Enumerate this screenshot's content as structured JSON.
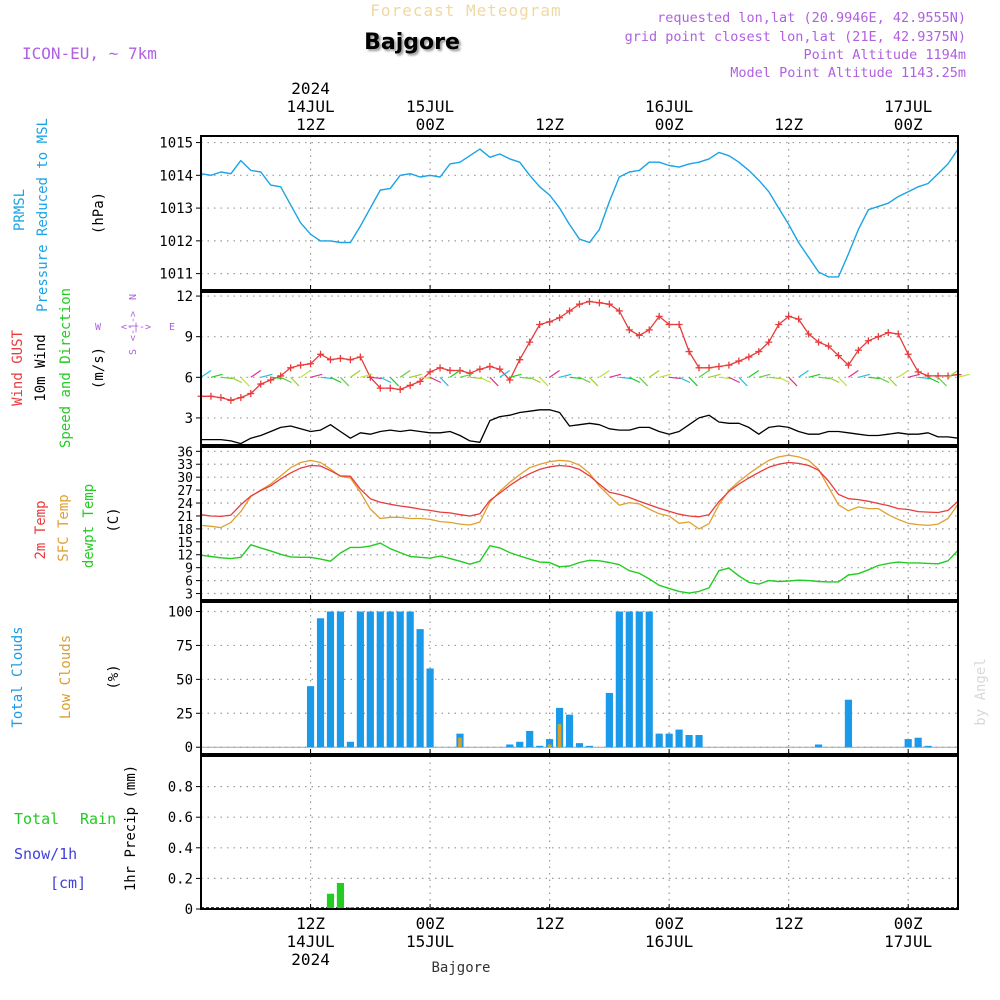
{
  "header": {
    "title": "Forecast Meteogram",
    "location": "Bajgore",
    "model": "ICON-EU, ~ 7km",
    "requested": "requested lon,lat (20.9946E, 42.9555N)",
    "grid_point": "grid point closest lon,lat (21E, 42.9375N)",
    "point_altitude": "Point Altitude 1194m",
    "model_altitude": "Model Point Altitude 1143.25m",
    "watermark": "by Angel",
    "footer_location": "Bajgore"
  },
  "time_axis": {
    "top_labels": [
      {
        "lines": [
          "2024",
          "14JUL",
          "12Z"
        ],
        "hour": 12
      },
      {
        "lines": [
          "15JUL",
          "00Z"
        ],
        "hour": 24
      },
      {
        "lines": [
          "12Z"
        ],
        "hour": 36
      },
      {
        "lines": [
          "16JUL",
          "00Z"
        ],
        "hour": 48
      },
      {
        "lines": [
          "12Z"
        ],
        "hour": 60
      },
      {
        "lines": [
          "17JUL",
          "00Z"
        ],
        "hour": 72
      }
    ],
    "bottom_labels": [
      {
        "lines": [
          "12Z",
          "14JUL",
          "2024"
        ],
        "hour": 12
      },
      {
        "lines": [
          "00Z",
          "15JUL"
        ],
        "hour": 24
      },
      {
        "lines": [
          "12Z"
        ],
        "hour": 36
      },
      {
        "lines": [
          "00Z",
          "16JUL"
        ],
        "hour": 48
      },
      {
        "lines": [
          "12Z"
        ],
        "hour": 60
      },
      {
        "lines": [
          "00Z",
          "17JUL"
        ],
        "hour": 72
      }
    ],
    "start_hour": 1,
    "end_hour": 77
  },
  "colors": {
    "pressure": "#1aa3e6",
    "gust": "#e83c3c",
    "wind": "#000000",
    "temp2m": "#e83c3c",
    "sfc_temp": "#e0a030",
    "dewpt": "#22cc22",
    "total_clouds": "#1a9ae8",
    "low_clouds": "#d9a030",
    "rain": "#22cc22",
    "snow": "#4040e0",
    "purple": "#b060e0"
  },
  "panel_labels": {
    "pressure": {
      "line1": "PRMSL",
      "line2": "Pressure Reduced to MSL",
      "unit": "(hPa)"
    },
    "wind": {
      "gust": "Wind GUST",
      "wind": "10m Wind",
      "dir": "Speed and Direction",
      "unit": "(m/s)",
      "compass_n": "N",
      "compass_s": "S",
      "compass_w": "W",
      "compass_e": "E",
      "compass_mid": "<-|->"
    },
    "temp": {
      "t2m": "2m Temp",
      "sfc": "SFC Temp",
      "dew": "dewpt Temp",
      "unit": "(C)"
    },
    "clouds": {
      "total": "Total Clouds",
      "low": "Low Clouds",
      "unit": "(%)"
    },
    "precip": {
      "rain_a": "Total",
      "rain_b": "Rain",
      "snow": "Snow/1h",
      "snow_unit": "[cm]",
      "unit": "1hr Precip (mm)"
    }
  },
  "chart_data": [
    {
      "type": "line",
      "title": "PRMSL Pressure Reduced to MSL",
      "ylabel": "(hPa)",
      "ylim": [
        1010.5,
        1015.2
      ],
      "yticks": [
        1011,
        1012,
        1013,
        1014,
        1015
      ],
      "x": [
        1,
        2,
        3,
        4,
        5,
        6,
        7,
        8,
        9,
        10,
        11,
        12,
        13,
        14,
        15,
        16,
        17,
        18,
        19,
        20,
        21,
        22,
        23,
        24,
        25,
        26,
        27,
        28,
        29,
        30,
        31,
        32,
        33,
        34,
        35,
        36,
        37,
        38,
        39,
        40,
        41,
        42,
        43,
        44,
        45,
        46,
        47,
        48,
        49,
        50,
        51,
        52,
        53,
        54,
        55,
        56,
        57,
        58,
        59,
        60,
        61,
        62,
        63,
        64,
        65,
        66,
        67,
        68,
        69,
        70,
        71,
        72,
        73,
        74,
        75,
        76,
        77
      ],
      "series": [
        {
          "name": "PRMSL",
          "values": [
            1014.05,
            1014.0,
            1014.1,
            1014.05,
            1014.45,
            1014.15,
            1014.1,
            1013.7,
            1013.65,
            1013.1,
            1012.55,
            1012.2,
            1012.0,
            1012.0,
            1011.95,
            1011.95,
            1012.45,
            1013.0,
            1013.55,
            1013.6,
            1014.0,
            1014.05,
            1013.95,
            1014.0,
            1013.95,
            1014.35,
            1014.4,
            1014.6,
            1014.8,
            1014.55,
            1014.65,
            1014.5,
            1014.4,
            1014.0,
            1013.65,
            1013.4,
            1013.0,
            1012.5,
            1012.05,
            1011.95,
            1012.35,
            1013.2,
            1013.95,
            1014.1,
            1014.15,
            1014.4,
            1014.4,
            1014.3,
            1014.25,
            1014.35,
            1014.4,
            1014.5,
            1014.7,
            1014.6,
            1014.4,
            1014.15,
            1013.85,
            1013.5,
            1013.0,
            1012.5,
            1011.95,
            1011.5,
            1011.05,
            1010.9,
            1010.9,
            1011.6,
            1012.35,
            1012.95,
            1013.05,
            1013.15,
            1013.35,
            1013.5,
            1013.65,
            1013.75,
            1014.05,
            1014.35,
            1014.8
          ]
        }
      ]
    },
    {
      "type": "line",
      "title": "Wind GUST / 10m Wind Speed and Direction",
      "ylabel": "(m/s)",
      "ylim": [
        1,
        12.3
      ],
      "yticks": [
        3,
        6,
        9,
        12
      ],
      "x": [
        1,
        2,
        3,
        4,
        5,
        6,
        7,
        8,
        9,
        10,
        11,
        12,
        13,
        14,
        15,
        16,
        17,
        18,
        19,
        20,
        21,
        22,
        23,
        24,
        25,
        26,
        27,
        28,
        29,
        30,
        31,
        32,
        33,
        34,
        35,
        36,
        37,
        38,
        39,
        40,
        41,
        42,
        43,
        44,
        45,
        46,
        47,
        48,
        49,
        50,
        51,
        52,
        53,
        54,
        55,
        56,
        57,
        58,
        59,
        60,
        61,
        62,
        63,
        64,
        65,
        66,
        67,
        68,
        69,
        70,
        71,
        72,
        73,
        74,
        75,
        76,
        77
      ],
      "series": [
        {
          "name": "Wind GUST",
          "values": [
            4.6,
            4.6,
            4.5,
            4.3,
            4.5,
            4.8,
            5.5,
            5.8,
            6.1,
            6.7,
            6.9,
            7.0,
            7.7,
            7.3,
            7.4,
            7.3,
            7.5,
            6.0,
            5.2,
            5.2,
            5.1,
            5.4,
            5.7,
            6.4,
            6.7,
            6.5,
            6.5,
            6.3,
            6.6,
            6.8,
            6.6,
            5.8,
            7.3,
            8.6,
            9.9,
            10.1,
            10.4,
            10.9,
            11.4,
            11.6,
            11.5,
            11.4,
            10.9,
            9.5,
            9.1,
            9.5,
            10.5,
            9.9,
            9.9,
            7.9,
            6.7,
            6.7,
            6.8,
            6.9,
            7.2,
            7.5,
            7.9,
            8.6,
            9.9,
            10.5,
            10.3,
            9.2,
            8.6,
            8.3,
            7.6,
            6.9,
            8.0,
            8.7,
            9.0,
            9.3,
            9.2,
            7.7,
            6.4,
            6.1,
            6.1,
            6.1,
            6.2
          ]
        },
        {
          "name": "10m Wind",
          "values": [
            1.4,
            1.4,
            1.4,
            1.3,
            1.1,
            1.5,
            1.7,
            2.0,
            2.3,
            2.4,
            2.2,
            2.0,
            2.1,
            2.5,
            2.0,
            1.5,
            1.9,
            1.8,
            2.0,
            2.1,
            2.0,
            2.1,
            2.0,
            1.9,
            1.9,
            2.0,
            1.7,
            1.3,
            1.2,
            2.8,
            3.1,
            3.2,
            3.4,
            3.5,
            3.6,
            3.6,
            3.4,
            2.4,
            2.5,
            2.6,
            2.5,
            2.2,
            2.1,
            2.1,
            2.3,
            2.3,
            2.0,
            1.8,
            2.0,
            2.5,
            3.0,
            3.2,
            2.7,
            2.6,
            2.6,
            2.3,
            1.8,
            2.3,
            2.4,
            2.3,
            2.0,
            1.8,
            1.8,
            2.0,
            2.0,
            1.9,
            1.8,
            1.7,
            1.7,
            1.8,
            1.9,
            1.8,
            1.8,
            1.9,
            1.6,
            1.6,
            1.5
          ]
        }
      ]
    },
    {
      "type": "line",
      "title": "2m Temp / SFC Temp / dewpt Temp",
      "ylabel": "(C)",
      "ylim": [
        1.5,
        37
      ],
      "yticks": [
        3,
        6,
        9,
        12,
        15,
        18,
        21,
        24,
        27,
        30,
        33,
        36
      ],
      "x": [
        1,
        2,
        3,
        4,
        5,
        6,
        7,
        8,
        9,
        10,
        11,
        12,
        13,
        14,
        15,
        16,
        17,
        18,
        19,
        20,
        21,
        22,
        23,
        24,
        25,
        26,
        27,
        28,
        29,
        30,
        31,
        32,
        33,
        34,
        35,
        36,
        37,
        38,
        39,
        40,
        41,
        42,
        43,
        44,
        45,
        46,
        47,
        48,
        49,
        50,
        51,
        52,
        53,
        54,
        55,
        56,
        57,
        58,
        59,
        60,
        61,
        62,
        63,
        64,
        65,
        66,
        67,
        68,
        69,
        70,
        71,
        72,
        73,
        74,
        75,
        76,
        77
      ],
      "series": [
        {
          "name": "2m Temp",
          "values": [
            21.3,
            21.0,
            20.9,
            21.2,
            23.6,
            25.6,
            26.9,
            28.0,
            29.6,
            31.0,
            32.1,
            32.7,
            32.6,
            31.5,
            30.3,
            30.2,
            27.2,
            25.0,
            24.2,
            23.7,
            23.3,
            23.0,
            22.6,
            22.3,
            21.9,
            21.7,
            21.3,
            21.0,
            21.5,
            24.6,
            26.3,
            28.1,
            29.6,
            30.8,
            31.8,
            32.4,
            32.7,
            32.5,
            31.8,
            30.3,
            28.4,
            26.5,
            26.0,
            25.3,
            24.4,
            23.6,
            22.8,
            22.1,
            21.4,
            21.0,
            20.8,
            21.3,
            24.3,
            26.7,
            28.4,
            29.8,
            31.1,
            32.3,
            33.0,
            33.4,
            33.2,
            32.7,
            31.6,
            29.1,
            26.0,
            25.0,
            24.8,
            24.4,
            23.9,
            23.4,
            22.7,
            22.5,
            22.0,
            21.9,
            21.8,
            22.3,
            24.4
          ]
        },
        {
          "name": "SFC Temp",
          "values": [
            18.8,
            18.6,
            18.3,
            19.5,
            22.0,
            25.5,
            27.0,
            28.4,
            30.3,
            32.2,
            33.4,
            33.9,
            33.4,
            31.9,
            30.2,
            29.8,
            26.5,
            22.6,
            20.4,
            20.7,
            20.7,
            20.4,
            20.4,
            20.2,
            19.7,
            19.5,
            19.1,
            18.9,
            19.6,
            24.2,
            26.7,
            28.8,
            30.6,
            32.2,
            33.0,
            33.6,
            33.9,
            33.7,
            32.8,
            30.9,
            27.9,
            25.6,
            23.5,
            24.1,
            23.8,
            22.6,
            21.5,
            21.0,
            19.3,
            19.6,
            18.0,
            19.2,
            23.6,
            26.9,
            29.0,
            30.8,
            32.4,
            33.9,
            34.7,
            35.1,
            34.7,
            33.9,
            31.8,
            27.7,
            23.6,
            22.2,
            23.1,
            22.7,
            22.7,
            21.3,
            20.2,
            19.3,
            19.0,
            18.8,
            19.1,
            20.4,
            23.7
          ]
        },
        {
          "name": "dewpt Temp",
          "values": [
            11.9,
            11.6,
            11.3,
            11.1,
            11.4,
            14.3,
            13.6,
            12.9,
            12.1,
            11.5,
            11.4,
            11.4,
            11.0,
            10.5,
            12.4,
            13.7,
            13.7,
            14.0,
            14.7,
            13.4,
            12.5,
            11.6,
            11.4,
            11.2,
            11.7,
            11.1,
            10.5,
            9.8,
            10.5,
            14.1,
            13.6,
            12.5,
            11.7,
            11.0,
            10.3,
            10.2,
            9.2,
            9.4,
            10.2,
            10.7,
            10.6,
            10.2,
            9.7,
            8.3,
            7.7,
            6.4,
            4.9,
            4.2,
            3.5,
            3.1,
            3.5,
            4.3,
            8.3,
            8.9,
            7.1,
            5.6,
            5.2,
            6.0,
            5.8,
            5.9,
            6.1,
            6.0,
            5.8,
            5.7,
            5.7,
            7.3,
            7.6,
            8.5,
            9.5,
            10.0,
            10.3,
            10.1,
            10.1,
            10.0,
            9.9,
            10.6,
            13.0
          ]
        }
      ]
    },
    {
      "type": "bar",
      "title": "Total Clouds / Low Clouds",
      "ylabel": "(%)",
      "ylim": [
        -5,
        107
      ],
      "yticks": [
        0,
        25,
        50,
        75,
        100
      ],
      "x": [
        1,
        2,
        3,
        4,
        5,
        6,
        7,
        8,
        9,
        10,
        11,
        12,
        13,
        14,
        15,
        16,
        17,
        18,
        19,
        20,
        21,
        22,
        23,
        24,
        25,
        26,
        27,
        28,
        29,
        30,
        31,
        32,
        33,
        34,
        35,
        36,
        37,
        38,
        39,
        40,
        41,
        42,
        43,
        44,
        45,
        46,
        47,
        48,
        49,
        50,
        51,
        52,
        53,
        54,
        55,
        56,
        57,
        58,
        59,
        60,
        61,
        62,
        63,
        64,
        65,
        66,
        67,
        68,
        69,
        70,
        71,
        72,
        73,
        74,
        75,
        76,
        77
      ],
      "series": [
        {
          "name": "Total Clouds",
          "values": [
            0,
            0,
            0,
            0,
            0,
            0,
            0,
            0,
            0,
            0,
            0,
            45,
            95,
            100,
            100,
            4,
            100,
            100,
            100,
            100,
            100,
            100,
            87,
            58,
            0,
            0,
            10,
            0,
            0,
            0,
            0,
            2,
            4,
            12,
            1,
            6,
            29,
            24,
            3,
            1,
            0,
            40,
            100,
            100,
            100,
            100,
            10,
            10,
            13,
            9,
            9,
            0,
            0,
            0,
            0,
            0,
            0,
            0,
            0,
            0,
            0,
            0,
            2,
            0,
            0,
            35,
            0,
            0,
            0,
            0,
            0,
            6,
            7,
            1,
            0,
            0,
            0
          ]
        },
        {
          "name": "Low Clouds",
          "values": [
            0,
            0,
            0,
            0,
            0,
            0,
            0,
            0,
            0,
            0,
            0,
            0,
            0,
            0,
            0,
            0,
            0,
            0,
            0,
            0,
            0,
            0,
            0,
            0,
            0,
            0,
            7,
            0,
            0,
            0,
            0,
            0,
            0,
            0,
            0,
            2,
            17,
            0,
            0,
            0,
            0,
            0,
            0,
            0,
            0,
            0,
            0,
            0,
            0,
            0,
            0,
            0,
            0,
            0,
            0,
            0,
            0,
            0,
            0,
            0,
            0,
            0,
            0,
            0,
            0,
            0,
            0,
            0,
            0,
            0,
            0,
            0,
            0,
            0,
            0,
            0,
            0
          ]
        }
      ]
    },
    {
      "type": "bar",
      "title": "Total Rain / Snow/1h",
      "ylabel": "1hr Precip (mm)",
      "ylim": [
        0,
        1.0
      ],
      "yticks": [
        0,
        0.2,
        0.4,
        0.6,
        0.8
      ],
      "x": [
        14,
        15,
        16
      ],
      "series": [
        {
          "name": "Total Rain",
          "values": [
            0.1,
            0.17,
            0.01
          ]
        },
        {
          "name": "Snow/1h",
          "values": [
            0,
            0,
            0
          ]
        }
      ]
    }
  ]
}
